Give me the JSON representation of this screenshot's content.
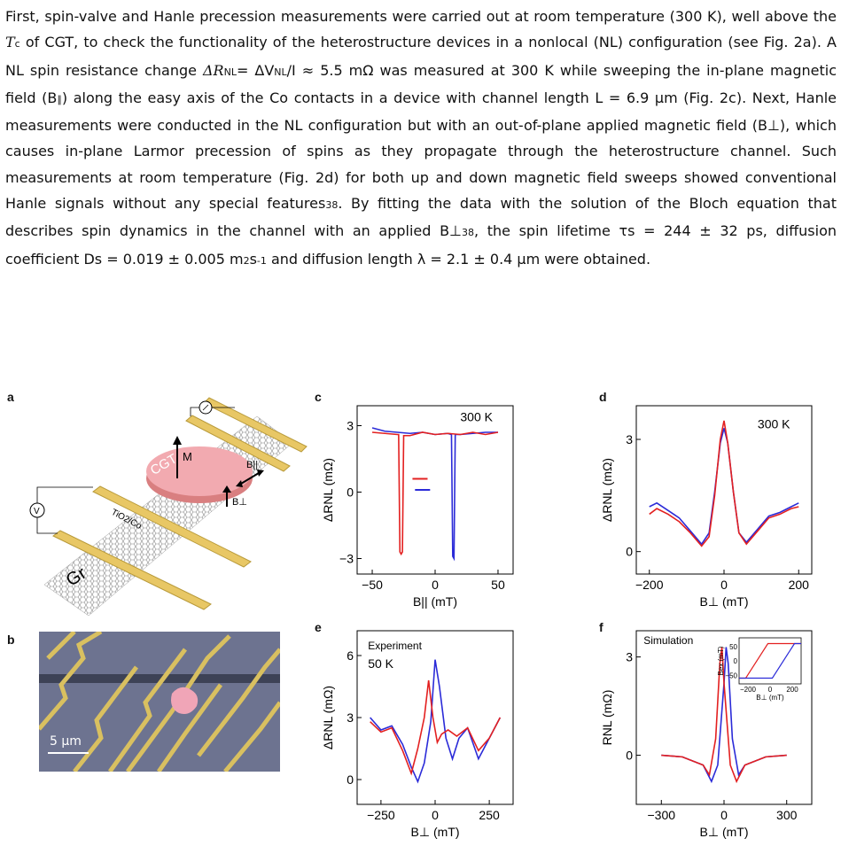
{
  "paragraph": {
    "s1": "First, spin-valve and Hanle precession measurements were carried out at room temperature (300 K), well above the ",
    "tc_T": "T",
    "tc_sub": "c",
    "s2": " of CGT, to check the functionality of the heterostructure devices in a nonlocal (NL) configuration (see Fig. 2a). A NL spin resistance change ",
    "dr1": "ΔR",
    "dr1_sub": "NL",
    "s3": "= ΔV",
    "dv_sub": "NL",
    "s4": "/I ≈ 5.5 mΩ was measured at 300 K while sweeping the in-plane magnetic field (B",
    "s4_sub": "∥",
    "s5": ") along the easy axis of the Co contacts in a device with channel length L = 6.9 μm (Fig. 2c). Next, Hanle measurements were conducted in the NL configuration but with an out-of-plane applied magnetic field (B⊥), which causes in-plane Larmor precession of spins as they propagate through the heterostructure channel. Such measurements at room temperature (Fig. 2d) for both up and down magnetic field sweeps showed conventional Hanle signals without any special features",
    "ref1": "38",
    "s6": ". By fitting the data with the solution of the Bloch equation that describes spin dynamics in the channel with an applied B⊥",
    "ref2": "38",
    "s7": ", the spin lifetime τs = 244 ± 32 ps, diffusion coefficient Ds = 0.019 ± 0.005 m",
    "sup2": "2",
    "s8": "s",
    "supm1": "-1",
    "s9": " and diffusion length λ = 2.1 ± 0.4 μm were obtained."
  },
  "figure": {
    "panel_labels": [
      "a",
      "b",
      "c",
      "d",
      "e",
      "f"
    ],
    "schematic": {
      "cgt_label": "CGT",
      "m_label": "M",
      "b_par": "B||",
      "b_perp": "B⊥",
      "tio_label": "TiO2/Co",
      "gr_label": "Gr",
      "v_label": "V"
    },
    "micrograph": {
      "scale_bar": "5 μm"
    },
    "colors": {
      "up": "#2b2bd8",
      "down": "#e32020"
    }
  },
  "chart_data": [
    {
      "panel": "c",
      "type": "line",
      "annotation": "300 K",
      "xlabel": "B|| (mT)",
      "ylabel": "ΔRNL (mΩ)",
      "xlim": [
        -62,
        62
      ],
      "ylim": [
        -3.7,
        3.9
      ],
      "xticks": [
        -50,
        0,
        50
      ],
      "yticks": [
        -3,
        0,
        3
      ],
      "series": [
        {
          "color": "blue",
          "x": [
            -50,
            -40,
            -30,
            -20,
            -10,
            0,
            10,
            13,
            14,
            15,
            16,
            20,
            30,
            40,
            50
          ],
          "y": [
            2.9,
            2.75,
            2.7,
            2.65,
            2.7,
            2.6,
            2.65,
            2.6,
            -2.9,
            -3.0,
            2.6,
            2.6,
            2.65,
            2.7,
            2.7
          ]
        },
        {
          "color": "red",
          "x": [
            50,
            40,
            30,
            20,
            10,
            0,
            -10,
            -20,
            -25,
            -26,
            -27,
            -28,
            -29,
            -30,
            -40,
            -50
          ],
          "y": [
            2.7,
            2.6,
            2.7,
            2.6,
            2.65,
            2.6,
            2.7,
            2.55,
            2.55,
            -2.7,
            -2.8,
            -2.7,
            2.6,
            2.6,
            2.65,
            2.7
          ]
        }
      ]
    },
    {
      "panel": "d",
      "type": "line",
      "annotation": "300 K",
      "xlabel": "B⊥ (mT)",
      "ylabel": "ΔRNL (mΩ)",
      "xlim": [
        -235,
        235
      ],
      "ylim": [
        -0.6,
        3.9
      ],
      "xticks": [
        -200,
        0,
        200
      ],
      "yticks": [
        0,
        3
      ],
      "series": [
        {
          "color": "blue",
          "x": [
            -200,
            -180,
            -150,
            -120,
            -90,
            -60,
            -40,
            -25,
            -10,
            0,
            10,
            25,
            40,
            60,
            90,
            120,
            150,
            180,
            200
          ],
          "y": [
            1.2,
            1.3,
            1.1,
            0.9,
            0.55,
            0.2,
            0.5,
            1.6,
            2.9,
            3.3,
            2.9,
            1.6,
            0.5,
            0.25,
            0.6,
            0.95,
            1.05,
            1.2,
            1.3
          ]
        },
        {
          "color": "red",
          "x": [
            -200,
            -180,
            -150,
            -120,
            -90,
            -60,
            -40,
            -25,
            -10,
            0,
            10,
            25,
            40,
            60,
            90,
            120,
            150,
            180,
            200
          ],
          "y": [
            1.0,
            1.15,
            1.0,
            0.8,
            0.5,
            0.15,
            0.4,
            1.5,
            3.0,
            3.5,
            2.9,
            1.6,
            0.5,
            0.2,
            0.55,
            0.9,
            1.0,
            1.15,
            1.2
          ]
        }
      ]
    },
    {
      "panel": "e",
      "type": "line",
      "annotation": "Experiment",
      "annotation2": "50 K",
      "xlabel": "B⊥ (mT)",
      "ylabel": "ΔRNL (mΩ)",
      "xlim": [
        -360,
        360
      ],
      "ylim": [
        -1.2,
        7.2
      ],
      "xticks": [
        -250,
        0,
        250
      ],
      "yticks": [
        0,
        3,
        6
      ],
      "series": [
        {
          "color": "blue",
          "x": [
            -300,
            -250,
            -200,
            -150,
            -110,
            -80,
            -50,
            -20,
            0,
            20,
            50,
            80,
            110,
            150,
            200,
            250,
            300
          ],
          "y": [
            3.0,
            2.4,
            2.6,
            1.7,
            0.6,
            -0.1,
            0.8,
            2.8,
            5.8,
            4.5,
            2.0,
            1.0,
            2.0,
            2.5,
            1.0,
            2.0,
            3.0
          ]
        },
        {
          "color": "red",
          "x": [
            -300,
            -250,
            -200,
            -150,
            -110,
            -80,
            -50,
            -30,
            -10,
            10,
            30,
            60,
            100,
            150,
            200,
            250,
            300
          ],
          "y": [
            2.8,
            2.3,
            2.5,
            1.4,
            0.3,
            1.5,
            3.0,
            4.8,
            3.0,
            1.8,
            2.2,
            2.4,
            2.1,
            2.5,
            1.4,
            2.0,
            3.0
          ]
        }
      ]
    },
    {
      "panel": "f",
      "type": "line",
      "annotation": "Simulation",
      "xlabel": "B⊥ (mT)",
      "ylabel": "RNL (mΩ)",
      "xlim": [
        -420,
        420
      ],
      "ylim": [
        -1.5,
        3.8
      ],
      "xticks": [
        -300,
        0,
        300
      ],
      "yticks": [
        0,
        3
      ],
      "series": [
        {
          "color": "blue",
          "x": [
            -300,
            -200,
            -100,
            -60,
            -30,
            0,
            10,
            20,
            40,
            70,
            100,
            200,
            300
          ],
          "y": [
            0.0,
            -0.05,
            -0.3,
            -0.8,
            -0.3,
            2.2,
            3.3,
            2.8,
            0.5,
            -0.6,
            -0.3,
            -0.05,
            0.0
          ]
        },
        {
          "color": "red",
          "x": [
            -300,
            -200,
            -100,
            -70,
            -40,
            -20,
            -10,
            0,
            30,
            60,
            100,
            200,
            300
          ],
          "y": [
            0.0,
            -0.05,
            -0.3,
            -0.6,
            0.5,
            2.8,
            3.3,
            2.2,
            -0.3,
            -0.8,
            -0.3,
            -0.05,
            0.0
          ]
        }
      ],
      "inset": {
        "xlabel": "B⊥ (mT)",
        "ylabel": "Bex (mT)",
        "xticks": [
          -200,
          0,
          200
        ],
        "yticks": [
          -50,
          0,
          50
        ],
        "xlim": [
          -280,
          280
        ],
        "ylim": [
          -80,
          80
        ],
        "series": [
          {
            "color": "red",
            "x": [
              -280,
              -220,
              -20,
              280
            ],
            "y": [
              -60,
              -60,
              60,
              60
            ]
          },
          {
            "color": "blue",
            "x": [
              -280,
              20,
              220,
              280
            ],
            "y": [
              -60,
              -60,
              60,
              60
            ]
          }
        ]
      }
    }
  ]
}
